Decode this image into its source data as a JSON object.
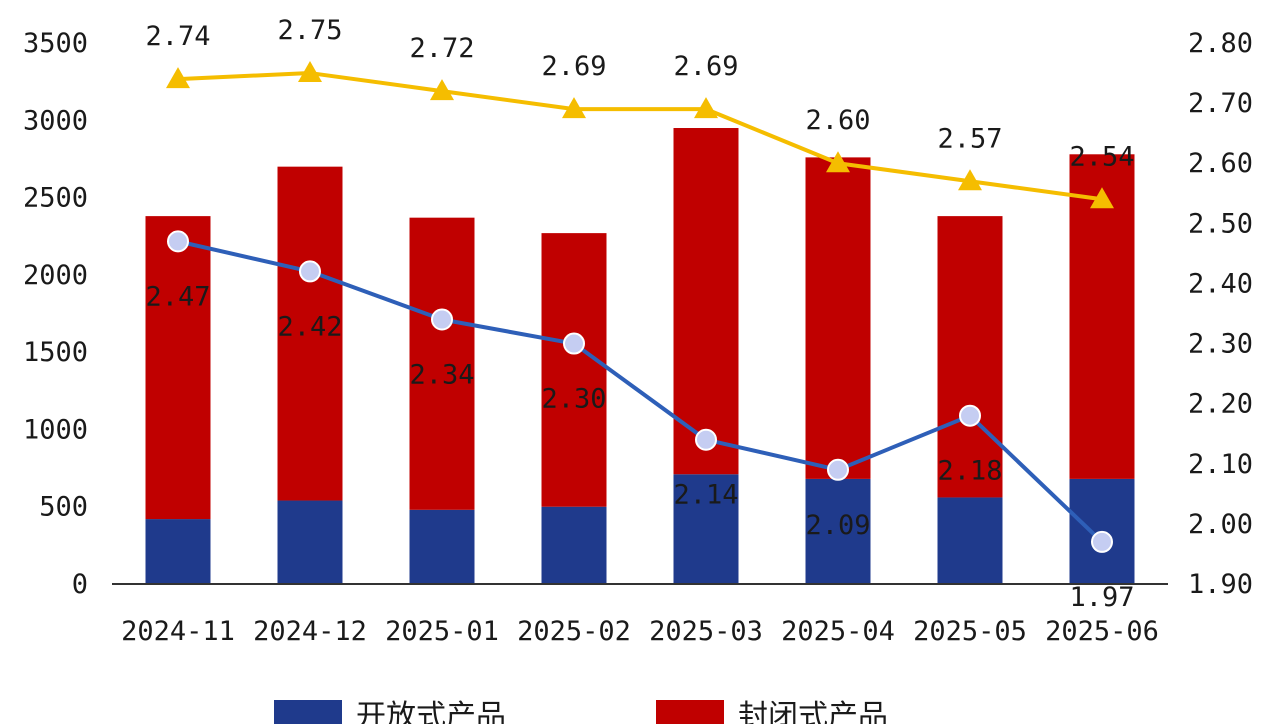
{
  "chart_data": {
    "type": "bar",
    "stacked": true,
    "categories": [
      "2024-11",
      "2024-12",
      "2025-01",
      "2025-02",
      "2025-03",
      "2025-04",
      "2025-05",
      "2025-06"
    ],
    "series": [
      {
        "name": "开放式产品",
        "axis": "left",
        "type": "bar",
        "color": "#1f3a8c",
        "values": [
          420,
          540,
          480,
          500,
          710,
          680,
          560,
          680
        ]
      },
      {
        "name": "封闭式产品",
        "axis": "left",
        "type": "bar",
        "color": "#c00000",
        "values": [
          1960,
          2160,
          1890,
          1770,
          2240,
          2080,
          1820,
          2100
        ]
      },
      {
        "axis": "right",
        "type": "line",
        "color": "#f5bd00",
        "marker": "triangle",
        "values": [
          2.74,
          2.75,
          2.72,
          2.69,
          2.69,
          2.6,
          2.57,
          2.54
        ],
        "labels": [
          "2.74",
          "2.75",
          "2.72",
          "2.69",
          "2.69",
          "2.60",
          "2.57",
          "2.54"
        ]
      },
      {
        "axis": "right",
        "type": "line",
        "color": "#2e5fb8",
        "marker": "circle",
        "marker_fill": "#c5cdf2",
        "values": [
          2.47,
          2.42,
          2.34,
          2.3,
          2.14,
          2.09,
          2.18,
          1.97
        ],
        "labels": [
          "2.47",
          "2.42",
          "2.34",
          "2.30",
          "2.14",
          "2.09",
          "2.18",
          "1.97"
        ]
      }
    ],
    "y_left": {
      "min": 0,
      "max": 3500,
      "ticks": [
        "0",
        "500",
        "1000",
        "1500",
        "2000",
        "2500",
        "3000",
        "3500"
      ]
    },
    "y_right": {
      "min": 1.9,
      "max": 2.8,
      "ticks": [
        "1.90",
        "2.00",
        "2.10",
        "2.20",
        "2.30",
        "2.40",
        "2.50",
        "2.60",
        "2.70",
        "2.80"
      ]
    },
    "grid": false,
    "legend_position": "bottom"
  }
}
